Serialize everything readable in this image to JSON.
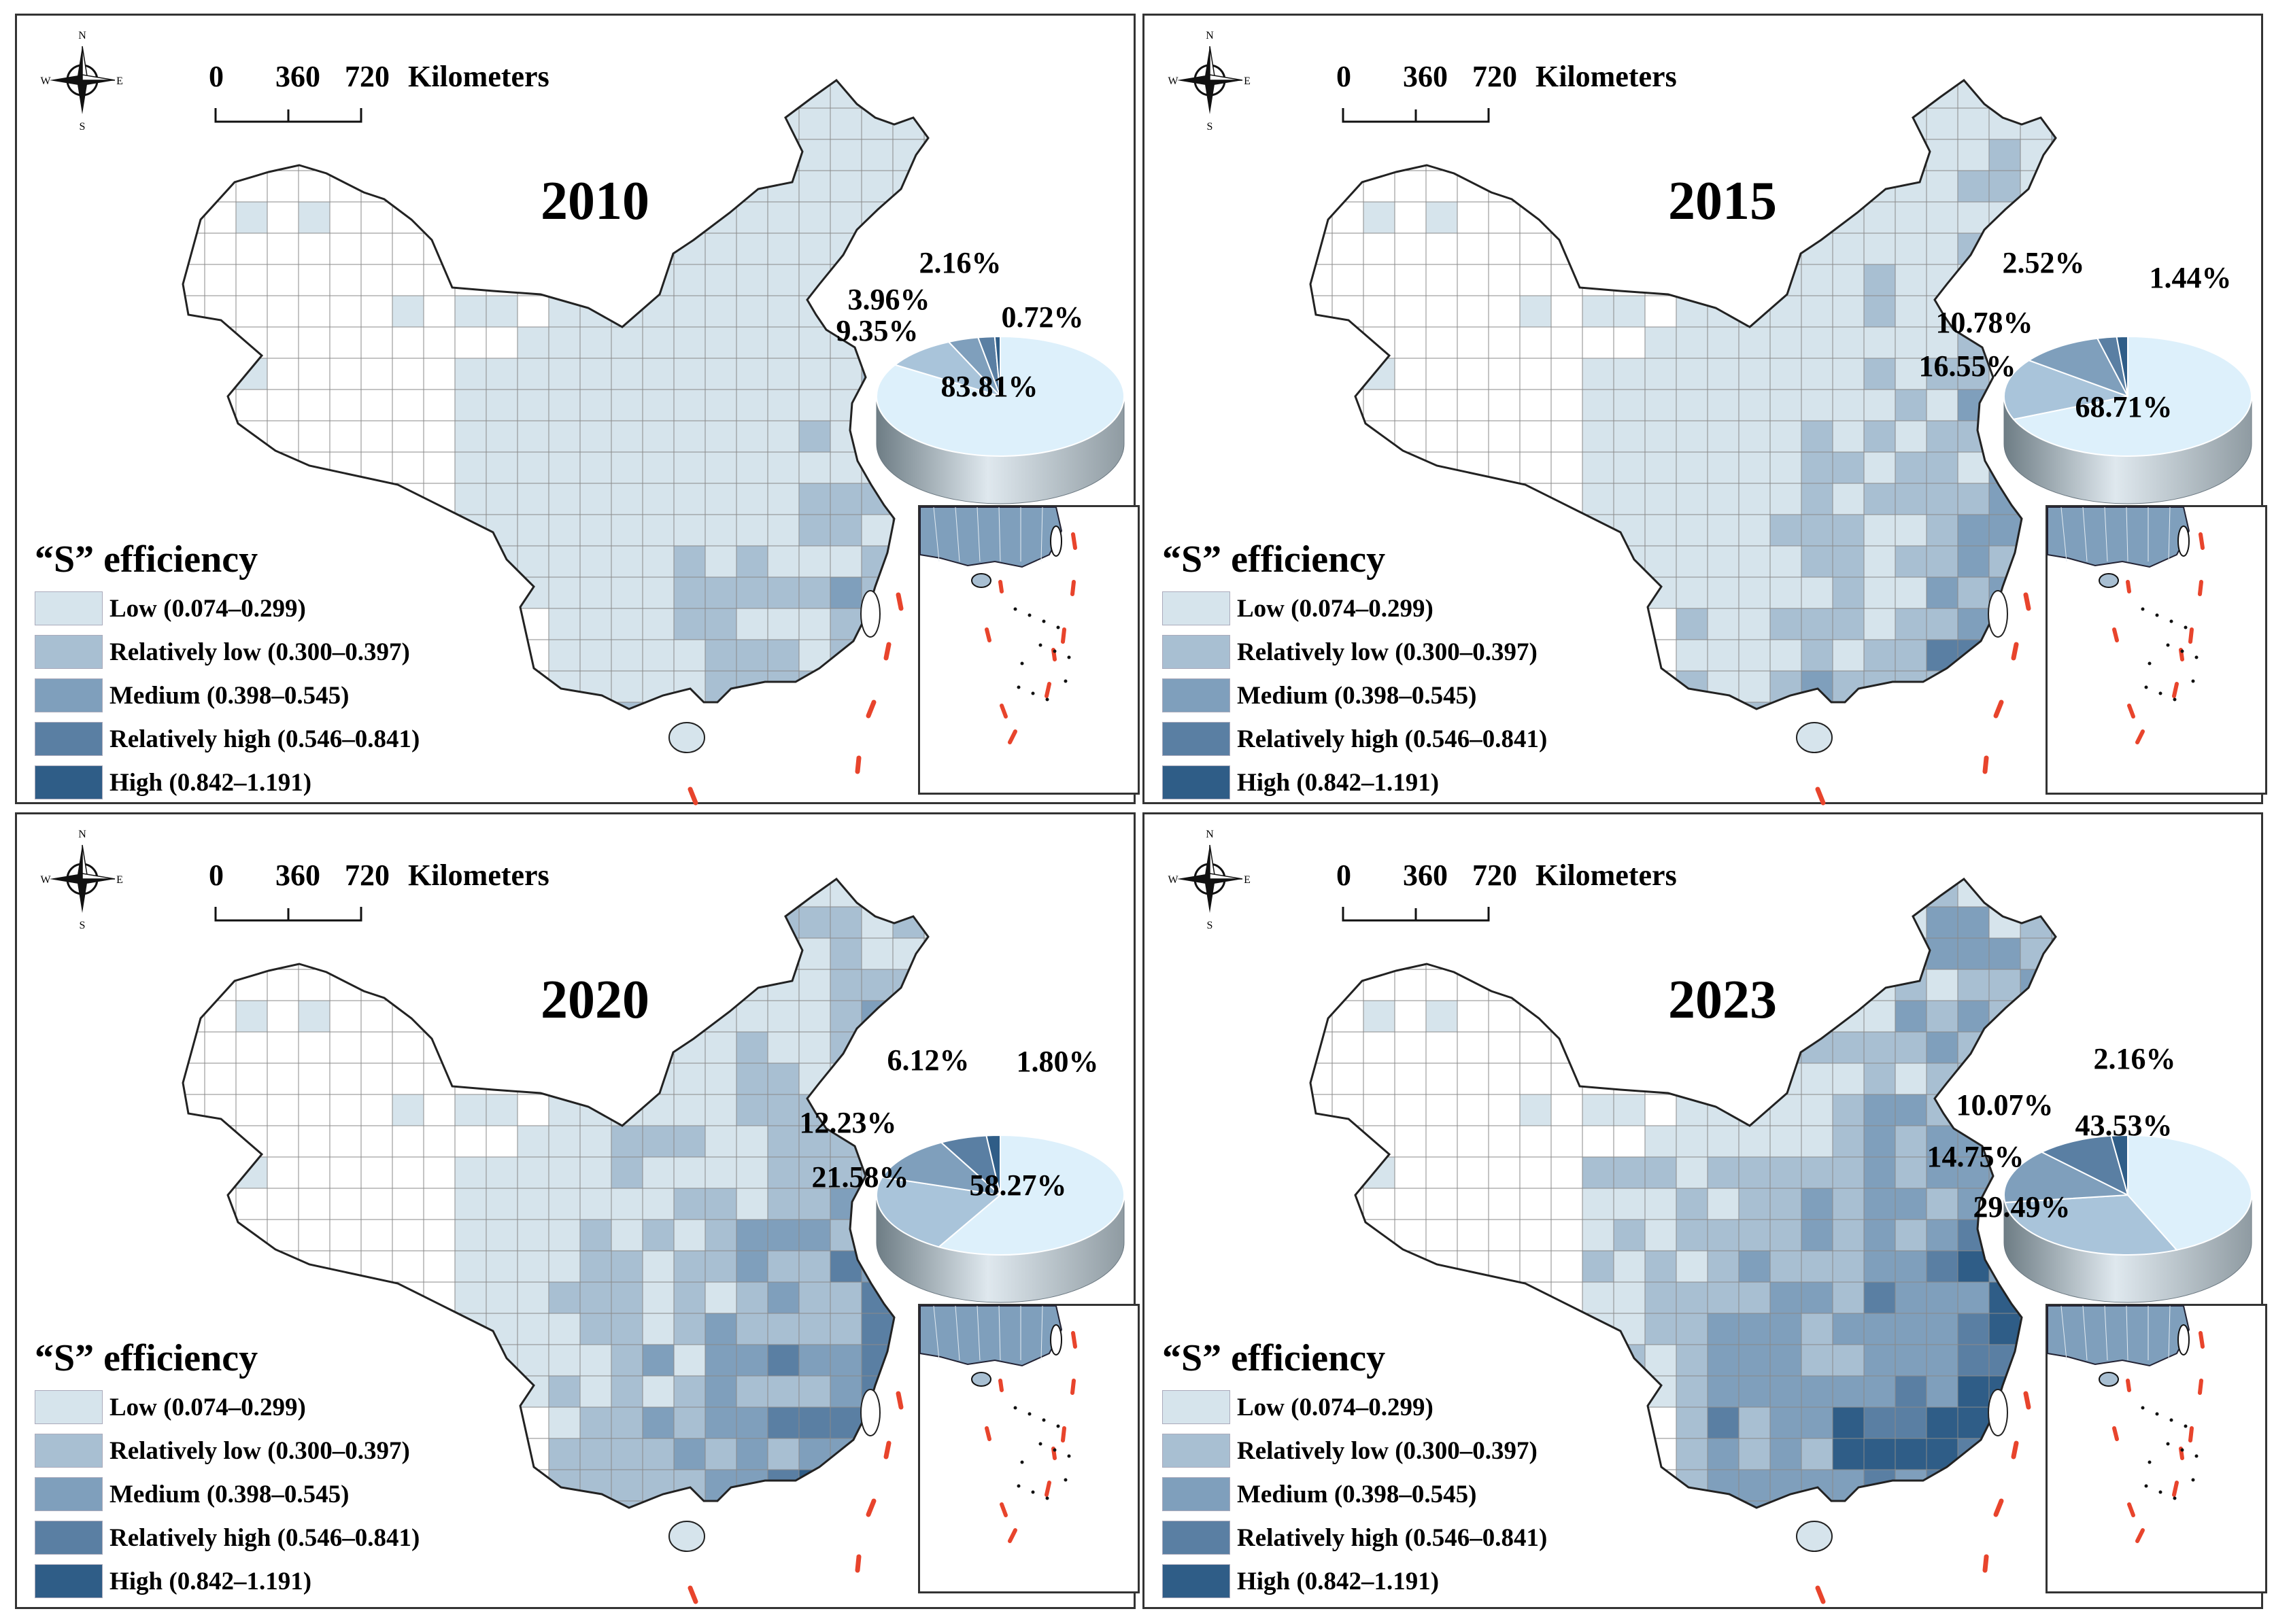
{
  "scale_bar": {
    "ticks": [
      "0",
      "360",
      "720"
    ],
    "unit": "Kilometers"
  },
  "compass": {
    "n": "N",
    "s": "S",
    "e": "E",
    "w": "W"
  },
  "legend": {
    "title": "“S” efficiency",
    "classes": [
      {
        "label": "Low (0.074–0.299)",
        "color": "#d6e4ec"
      },
      {
        "label": "Relatively low (0.300–0.397)",
        "color": "#a8bfd2"
      },
      {
        "label": "Medium (0.398–0.545)",
        "color": "#7f9fbc"
      },
      {
        "label": "Relatively high (0.546–0.841)",
        "color": "#5a7fa3"
      },
      {
        "label": "High (0.842–1.191)",
        "color": "#2f5d87"
      }
    ]
  },
  "chart_data": [
    {
      "type": "pie",
      "title": "2010",
      "categories": [
        "Low",
        "Relatively low",
        "Medium",
        "Relatively high",
        "High"
      ],
      "values": [
        83.81,
        9.35,
        3.96,
        2.16,
        0.72
      ],
      "labels": [
        "83.81%",
        "9.35%",
        "3.96%",
        "2.16%",
        "0.72%"
      ]
    },
    {
      "type": "pie",
      "title": "2015",
      "categories": [
        "Low",
        "Relatively low",
        "Medium",
        "Relatively high",
        "High"
      ],
      "values": [
        68.71,
        16.55,
        10.78,
        2.52,
        1.44
      ],
      "labels": [
        "68.71%",
        "16.55%",
        "10.78%",
        "2.52%",
        "1.44%"
      ]
    },
    {
      "type": "pie",
      "title": "2020",
      "categories": [
        "Low",
        "Relatively low",
        "Medium",
        "Relatively high",
        "High"
      ],
      "values": [
        58.27,
        21.58,
        12.23,
        6.12,
        1.8
      ],
      "labels": [
        "58.27%",
        "21.58%",
        "12.23%",
        "6.12%",
        "1.80%"
      ]
    },
    {
      "type": "pie",
      "title": "2023",
      "categories": [
        "Low",
        "Relatively low",
        "Medium",
        "Relatively high",
        "High"
      ],
      "values": [
        43.53,
        29.49,
        14.75,
        10.07,
        2.16
      ],
      "labels": [
        "43.53%",
        "29.49%",
        "14.75%",
        "10.07%",
        "2.16%"
      ]
    }
  ],
  "colors": {
    "no_data": "#ffffff",
    "boundary": "#8a8a8a",
    "dash_line": "#e8442c",
    "border": "#333333"
  }
}
